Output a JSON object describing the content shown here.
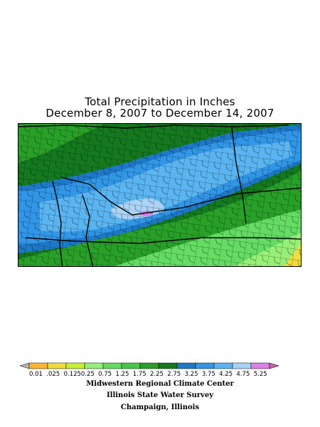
{
  "title": {
    "line1": "Total Precipitation in Inches",
    "line2": "December 8, 2007 to December 14, 2007"
  },
  "legend": {
    "labels": [
      "0.01",
      ".025",
      "0.125",
      "0.25",
      "0.75",
      "1.25",
      "1.75",
      "2.25",
      "2.75",
      "3.25",
      "3.75",
      "4.25",
      "4.75",
      "5.25"
    ],
    "colors": [
      "#b4b4b4",
      "#ffb432",
      "#f0dc3c",
      "#c8f032",
      "#96f078",
      "#64dc64",
      "#46c846",
      "#28a028",
      "#14781e",
      "#1e78c8",
      "#3296e6",
      "#5ab4f0",
      "#aad2f5",
      "#dc82e6",
      "#c864a0"
    ]
  },
  "credits": {
    "line1": "Midwestern Regional Climate Center",
    "line2": "Illinois State Water Survey",
    "line3": "Champaign, Illinois"
  },
  "map": {
    "band_colors": {
      "dark_green": "#14781e",
      "medium_green": "#28a028",
      "light_green": "#64dc64",
      "pale_green": "#96f078",
      "blue": "#1e78c8",
      "light_blue": "#3296e6",
      "sky_blue": "#5ab4f0",
      "pale_blue": "#aad2f5",
      "purple": "#dc82e6",
      "yellow": "#f0dc3c"
    }
  }
}
